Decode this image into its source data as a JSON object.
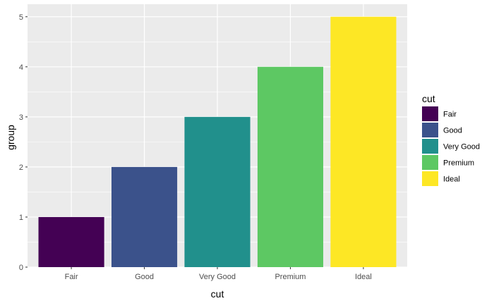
{
  "chart_data": {
    "type": "bar",
    "categories": [
      "Fair",
      "Good",
      "Very Good",
      "Premium",
      "Ideal"
    ],
    "values": [
      1,
      2,
      3,
      4,
      5
    ],
    "colors": [
      "#440154",
      "#3b528b",
      "#21908c",
      "#5dc863",
      "#fde725"
    ],
    "xlabel": "cut",
    "ylabel": "group",
    "ylim": [
      0,
      5.25
    ],
    "yticks": [
      0,
      1,
      2,
      3,
      4,
      5
    ],
    "grid": true,
    "panel_background": "#ebebeb",
    "grid_color": "#ffffff",
    "legend": {
      "title": "cut",
      "placement": "right",
      "entries": [
        "Fair",
        "Good",
        "Very Good",
        "Premium",
        "Ideal"
      ]
    }
  }
}
